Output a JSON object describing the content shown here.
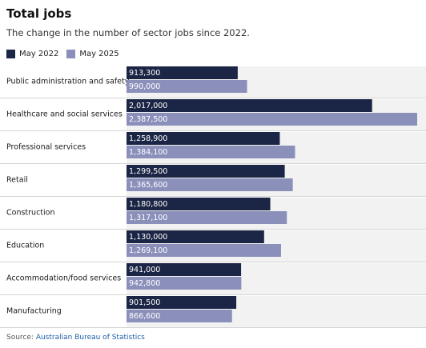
{
  "colors": {
    "may2022": "#1b2545",
    "may2025": "#8b90bb",
    "row_band": "#f2f2f2",
    "divider": "#d4d4d4",
    "label_text": "#ffffff"
  },
  "source": {
    "prefix": "Source: ",
    "link_text": "Australian Bureau of Statistics"
  },
  "chart_data": {
    "type": "bar",
    "orientation": "horizontal",
    "title": "Total jobs",
    "subtitle": "The change in the number of sector jobs since 2022.",
    "categories": [
      "Public administration and safety",
      "Healthcare and social services",
      "Professional services",
      "Retail",
      "Construction",
      "Education",
      "Accommodation/food services",
      "Manufacturing"
    ],
    "series": [
      {
        "name": "May 2022",
        "values": [
          913300,
          2017000,
          1258900,
          1299500,
          1180800,
          1130000,
          941000,
          901500
        ],
        "labels": [
          "913,300",
          "2,017,000",
          "1,258,900",
          "1,299,500",
          "1,180,800",
          "1,130,000",
          "941,000",
          "901,500"
        ]
      },
      {
        "name": "May 2025",
        "values": [
          990000,
          2387500,
          1384100,
          1365600,
          1317100,
          1269100,
          942800,
          866600
        ],
        "labels": [
          "990,000",
          "2,387,500",
          "1,384,100",
          "1,365,600",
          "1,317,100",
          "1,269,100",
          "942,800",
          "866,600"
        ]
      }
    ],
    "xlim": [
      0,
      2387500
    ],
    "legend_position": "top-left",
    "grid": false
  }
}
